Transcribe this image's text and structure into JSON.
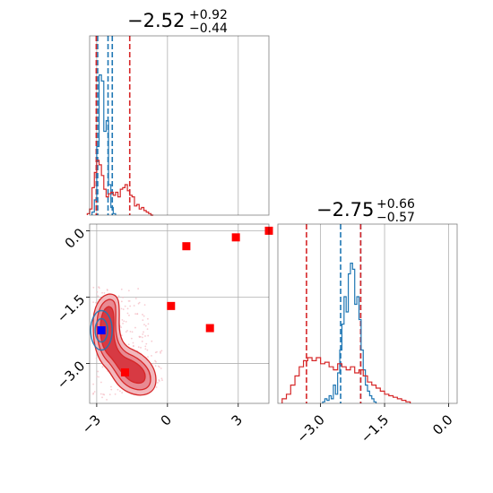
{
  "chart_data": [
    {
      "panel": "top-left",
      "type": "histogram",
      "title": {
        "main": "−2.52",
        "sup": "+0.92",
        "sub": "−0.44"
      },
      "xlim": [
        -3.3,
        4.3
      ],
      "grid": true,
      "x_ticks_labels": [],
      "colors": {
        "blue": "#1f77b4",
        "red": "#d62728"
      },
      "blue_quantile_lines": [
        -2.96,
        -2.52,
        -2.34
      ],
      "red_quantile_lines": [
        -3.02,
        -1.6
      ],
      "series": [
        {
          "color": "blue",
          "bin_edges": [
            -3.2,
            -3.1,
            -3.0,
            -2.9,
            -2.8,
            -2.7,
            -2.6,
            -2.5,
            -2.4,
            -2.3,
            -2.2
          ],
          "counts_relative": [
            0.02,
            0.1,
            0.45,
            0.92,
            0.88,
            0.55,
            0.62,
            0.2,
            0.05,
            0.01
          ]
        },
        {
          "color": "red",
          "bin_edges": [
            -3.4,
            -3.3,
            -3.2,
            -3.1,
            -3.0,
            -2.9,
            -2.8,
            -2.7,
            -2.6,
            -2.5,
            -2.4,
            -2.3,
            -2.2,
            -2.1,
            -2.0,
            -1.9,
            -1.8,
            -1.7,
            -1.6,
            -1.5,
            -1.4,
            -1.3,
            -1.2,
            -1.1,
            -1.0,
            -0.9,
            -0.8,
            -0.7,
            -0.6
          ],
          "counts_relative": [
            0.01,
            0.04,
            0.18,
            0.28,
            0.36,
            0.33,
            0.26,
            0.17,
            0.12,
            0.14,
            0.15,
            0.13,
            0.15,
            0.12,
            0.17,
            0.18,
            0.2,
            0.16,
            0.13,
            0.12,
            0.06,
            0.07,
            0.04,
            0.05,
            0.03,
            0.02,
            0.01,
            0.0
          ]
        }
      ]
    },
    {
      "panel": "bottom-left",
      "type": "scatter",
      "xlim": [
        -3.3,
        4.3
      ],
      "ylim": [
        -3.9,
        0.15
      ],
      "grid": true,
      "x_ticks": [
        {
          "value": -3,
          "label": "−3"
        },
        {
          "value": 0,
          "label": "0"
        },
        {
          "value": 3,
          "label": "3"
        }
      ],
      "y_ticks": [
        {
          "value": 0.0,
          "label": "0.0"
        },
        {
          "value": -1.5,
          "label": "−1.5"
        },
        {
          "value": -3.0,
          "label": "−3.0"
        }
      ],
      "red_points": [
        {
          "x": 4.3,
          "y": 0.0
        },
        {
          "x": 2.9,
          "y": -0.15
        },
        {
          "x": 0.8,
          "y": -0.35
        },
        {
          "x": 0.15,
          "y": -1.7
        },
        {
          "x": 1.8,
          "y": -2.2
        },
        {
          "x": -1.8,
          "y": -3.2
        },
        {
          "x": -2.8,
          "y": -2.25
        }
      ],
      "blue_point": {
        "x": -2.8,
        "y": -2.25
      },
      "contour_center": {
        "x": -2.8,
        "y": -2.25
      }
    },
    {
      "panel": "bottom-right",
      "type": "histogram",
      "title": {
        "main": "−2.75",
        "sup": "+0.66",
        "sub": "−0.57"
      },
      "xlim": [
        -4.0,
        0.2
      ],
      "grid": true,
      "x_ticks": [
        {
          "value": -3.0,
          "label": "−3.0"
        },
        {
          "value": -1.5,
          "label": "−1.5"
        },
        {
          "value": 0.0,
          "label": "0.0"
        }
      ],
      "blue_quantile_lines": [
        -2.53,
        -2.06
      ],
      "red_quantile_lines": [
        -3.33,
        -2.06
      ],
      "series": [
        {
          "color": "blue",
          "bin_edges": [
            -2.95,
            -2.9,
            -2.85,
            -2.8,
            -2.75,
            -2.7,
            -2.65,
            -2.6,
            -2.55,
            -2.5,
            -2.45,
            -2.4,
            -2.35,
            -2.3,
            -2.25,
            -2.2,
            -2.15,
            -2.1,
            -2.05,
            -2.0,
            -1.95,
            -1.9,
            -1.85,
            -1.8,
            -1.75,
            -1.7
          ],
          "counts_relative": [
            0.01,
            0.03,
            0.02,
            0.05,
            0.03,
            0.12,
            0.06,
            0.2,
            0.35,
            0.52,
            0.7,
            0.6,
            0.85,
            0.92,
            0.88,
            0.65,
            0.7,
            0.55,
            0.35,
            0.22,
            0.12,
            0.08,
            0.05,
            0.03,
            0.01
          ]
        },
        {
          "color": "red",
          "bin_edges": [
            -3.9,
            -3.8,
            -3.7,
            -3.6,
            -3.5,
            -3.4,
            -3.3,
            -3.2,
            -3.1,
            -3.0,
            -2.9,
            -2.8,
            -2.7,
            -2.6,
            -2.5,
            -2.4,
            -2.3,
            -2.2,
            -2.1,
            -2.0,
            -1.9,
            -1.8,
            -1.7,
            -1.6,
            -1.5,
            -1.4,
            -1.3,
            -1.2,
            -1.1,
            -1.0,
            -0.9
          ],
          "counts_relative": [
            0.03,
            0.06,
            0.12,
            0.18,
            0.24,
            0.28,
            0.3,
            0.28,
            0.3,
            0.26,
            0.27,
            0.24,
            0.22,
            0.26,
            0.24,
            0.22,
            0.24,
            0.2,
            0.22,
            0.18,
            0.14,
            0.12,
            0.1,
            0.08,
            0.06,
            0.05,
            0.04,
            0.03,
            0.02,
            0.01
          ]
        }
      ]
    }
  ]
}
